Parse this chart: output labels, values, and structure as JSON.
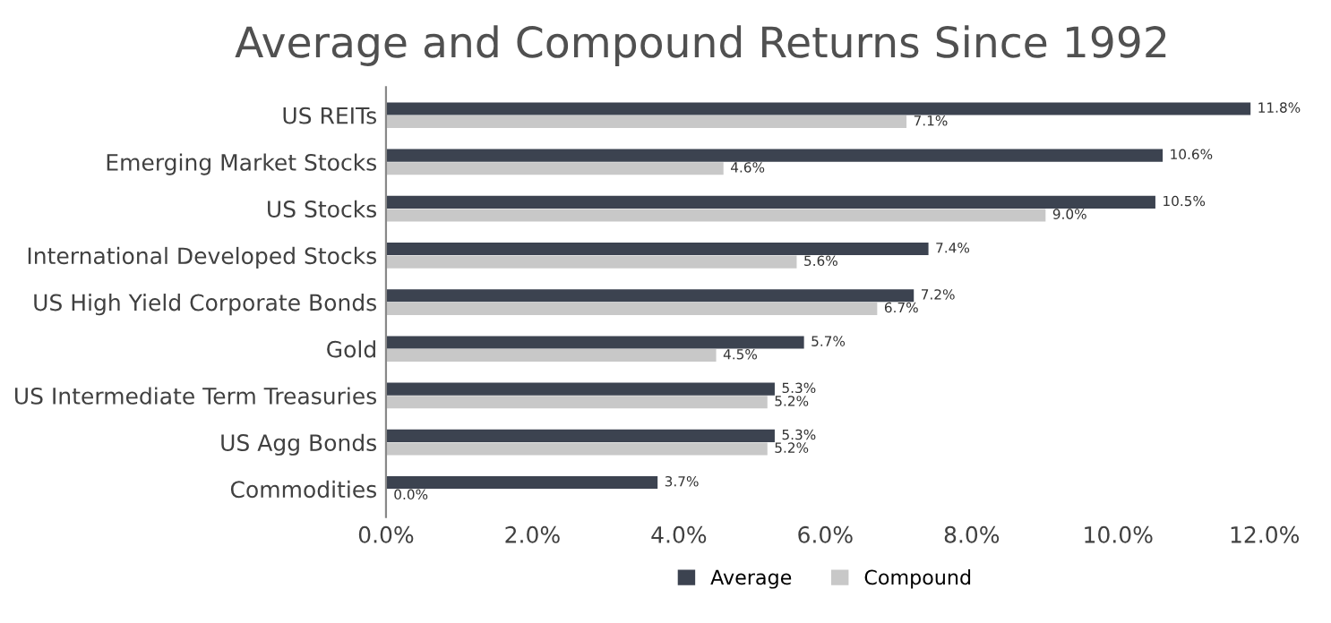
{
  "chart_data": {
    "type": "bar",
    "orientation": "horizontal",
    "title": "Average and Compound Returns Since 1992",
    "categories": [
      "US REITs",
      "Emerging Market Stocks",
      "US Stocks",
      "International Developed Stocks",
      "US High Yield Corporate Bonds",
      "Gold",
      "US Intermediate Term Treasuries",
      "US Agg Bonds",
      "Commodities"
    ],
    "series": [
      {
        "name": "Average",
        "color": "#3c4350",
        "values": [
          11.8,
          10.6,
          10.5,
          7.4,
          7.2,
          5.7,
          5.3,
          5.3,
          3.7
        ],
        "value_labels": [
          "11.8%",
          "10.6%",
          "10.5%",
          "7.4%",
          "7.2%",
          "5.7%",
          "5.3%",
          "5.3%",
          "3.7%"
        ]
      },
      {
        "name": "Compound",
        "color": "#c8c8c8",
        "values": [
          7.1,
          4.6,
          9.0,
          5.6,
          6.7,
          4.5,
          5.2,
          5.2,
          0.0
        ],
        "value_labels": [
          "7.1%",
          "4.6%",
          "9.0%",
          "5.6%",
          "6.7%",
          "4.5%",
          "5.2%",
          "5.2%",
          "0.0%"
        ]
      }
    ],
    "xlim": [
      0,
      12
    ],
    "xticks": [
      {
        "value": 0,
        "label": "0.0%"
      },
      {
        "value": 2,
        "label": "2.0%"
      },
      {
        "value": 4,
        "label": "4.0%"
      },
      {
        "value": 6,
        "label": "6.0%"
      },
      {
        "value": 8,
        "label": "8.0%"
      },
      {
        "value": 10,
        "label": "10.0%"
      },
      {
        "value": 12,
        "label": "12.0%"
      }
    ],
    "grid": false,
    "legend": "bottom"
  }
}
